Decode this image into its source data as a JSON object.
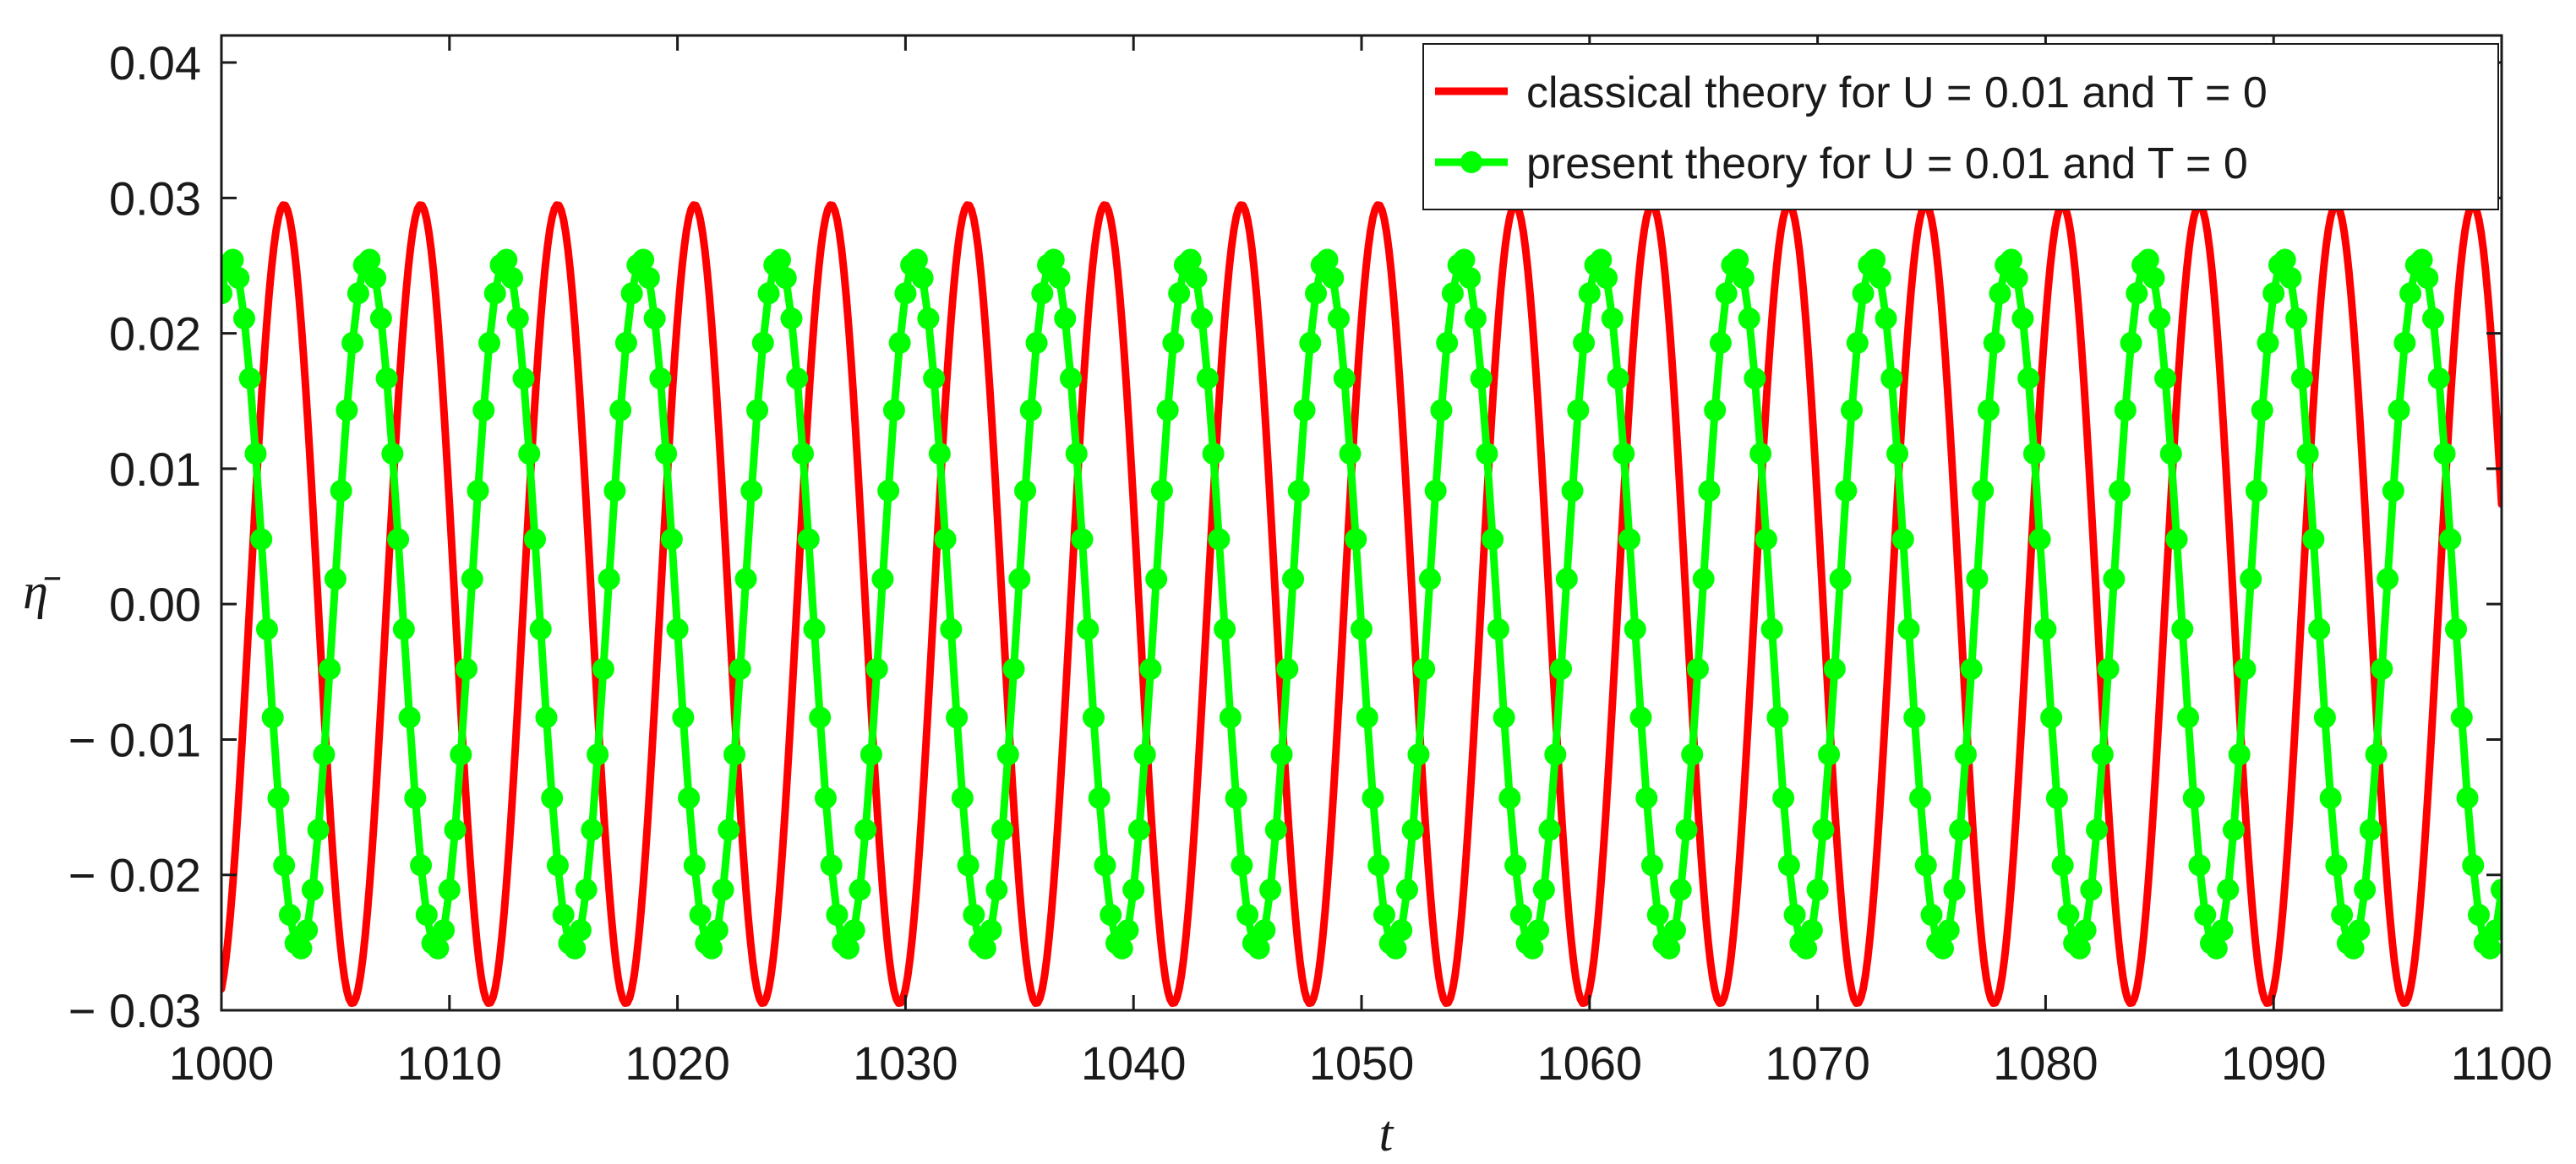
{
  "chart_data": {
    "type": "line",
    "title": "",
    "xlabel": "t",
    "ylabel": "η̄",
    "xlim": [
      1000,
      1100
    ],
    "ylim": [
      -0.03,
      0.042
    ],
    "x_ticks": [
      1000,
      1010,
      1020,
      1030,
      1040,
      1050,
      1060,
      1070,
      1080,
      1090,
      1100
    ],
    "x_tick_labels": [
      "1000",
      "1010",
      "1020",
      "1030",
      "1040",
      "1050",
      "1060",
      "1070",
      "1080",
      "1090",
      "1100"
    ],
    "y_ticks": [
      -0.03,
      -0.02,
      -0.01,
      0.0,
      0.01,
      0.02,
      0.03,
      0.04
    ],
    "y_tick_labels": [
      "− 0.03",
      "− 0.02",
      "− 0.01",
      "0.00",
      "0.01",
      "0.02",
      "0.03",
      "0.04"
    ],
    "legend_position": "top-right",
    "grid": false,
    "series": [
      {
        "name": "classical theory for U = 0.01 and T = 0",
        "color": "#ff0000",
        "style": "line",
        "model": "amplitude * sin(2*pi*(t - 1000)/period + phase)",
        "amplitude": 0.0295,
        "period": 6.0,
        "phase": -1.3,
        "x_start": 1000,
        "x_end": 1100,
        "sample_step": 0.1
      },
      {
        "name": "present theory for U = 0.01 and T = 0",
        "color": "#00ff00",
        "style": "line-marker",
        "model": "amplitude * sin(2*pi*(t - 1000)/period + phase)",
        "amplitude": 0.0255,
        "period": 6.0,
        "phase": 1.12,
        "x_start": 1000,
        "x_end": 1100,
        "sample_step": 0.25
      }
    ]
  }
}
